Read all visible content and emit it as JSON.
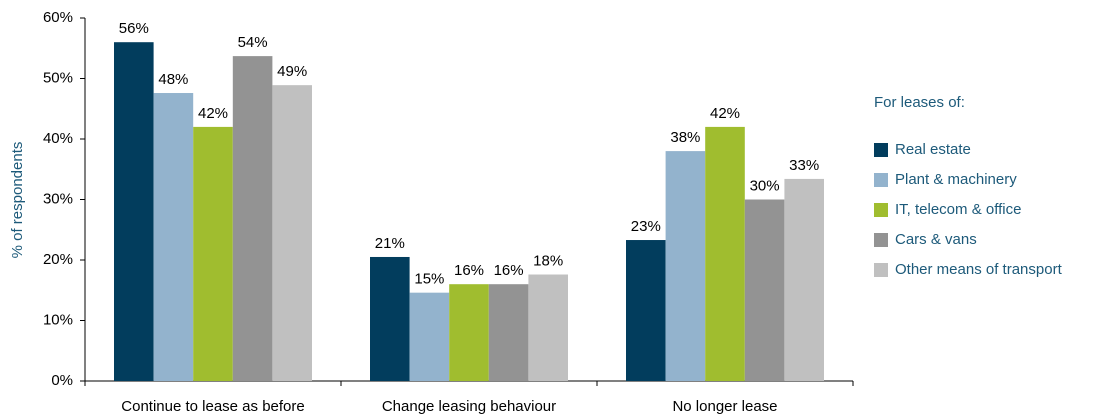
{
  "chart_data": {
    "type": "bar",
    "y_label": "% of respondents",
    "legend_title": "For leases of:",
    "categories": [
      "Continue to lease as before",
      "Change leasing behaviour",
      "No longer lease"
    ],
    "series": [
      {
        "name": "Real estate",
        "color": "#023d5d",
        "values": [
          56,
          20.5,
          23.3
        ],
        "value_labels": [
          "56%",
          "21%",
          "23%"
        ]
      },
      {
        "name": "Plant & machinery",
        "color": "#93b3cd",
        "values": [
          47.6,
          14.6,
          38
        ],
        "value_labels": [
          "48%",
          "15%",
          "38%"
        ]
      },
      {
        "name": "IT, telecom & office",
        "color": "#a0bd2f",
        "values": [
          42,
          16,
          42
        ],
        "value_labels": [
          "42%",
          "16%",
          "42%"
        ]
      },
      {
        "name": "Cars & vans",
        "color": "#939393",
        "values": [
          53.7,
          16,
          30
        ],
        "value_labels": [
          "54%",
          "16%",
          "30%"
        ]
      },
      {
        "name": "Other means of transport",
        "color": "#c0c0c0",
        "values": [
          48.9,
          17.6,
          33.4
        ],
        "value_labels": [
          "49%",
          "18%",
          "33%"
        ]
      }
    ],
    "ylim": [
      0,
      60
    ],
    "yticks": [
      {
        "value": 0,
        "label": "0%"
      },
      {
        "value": 10,
        "label": "10%"
      },
      {
        "value": 20,
        "label": "20%"
      },
      {
        "value": 30,
        "label": "30%"
      },
      {
        "value": 40,
        "label": "40%"
      },
      {
        "value": 50,
        "label": "50%"
      },
      {
        "value": 60,
        "label": "60%"
      }
    ],
    "legend_position": "right"
  }
}
